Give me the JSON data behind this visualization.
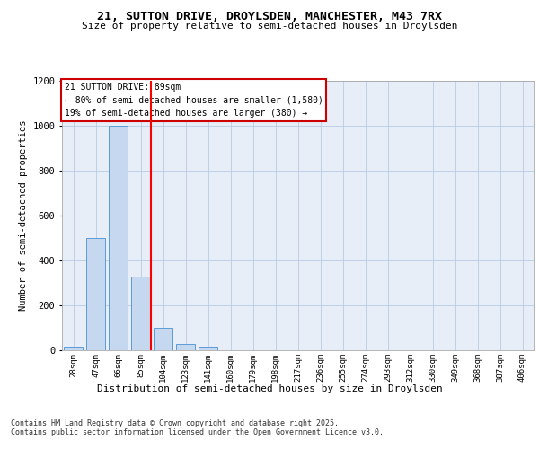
{
  "title1": "21, SUTTON DRIVE, DROYLSDEN, MANCHESTER, M43 7RX",
  "title2": "Size of property relative to semi-detached houses in Droylsden",
  "xlabel": "Distribution of semi-detached houses by size in Droylsden",
  "ylabel": "Number of semi-detached properties",
  "categories": [
    "28sqm",
    "47sqm",
    "66sqm",
    "85sqm",
    "104sqm",
    "123sqm",
    "141sqm",
    "160sqm",
    "179sqm",
    "198sqm",
    "217sqm",
    "236sqm",
    "255sqm",
    "274sqm",
    "293sqm",
    "312sqm",
    "330sqm",
    "349sqm",
    "368sqm",
    "387sqm",
    "406sqm"
  ],
  "values": [
    15,
    500,
    1000,
    330,
    100,
    30,
    15,
    0,
    0,
    0,
    0,
    0,
    0,
    0,
    0,
    0,
    0,
    0,
    0,
    0,
    0
  ],
  "bar_color": "#c5d8f0",
  "bar_edge_color": "#5b9bd5",
  "red_line_x": 3.5,
  "annotation_line1": "21 SUTTON DRIVE: 89sqm",
  "annotation_line2": "← 80% of semi-detached houses are smaller (1,580)",
  "annotation_line3": "19% of semi-detached houses are larger (380) →",
  "annotation_box_color": "#ffffff",
  "annotation_box_edge_color": "#cc0000",
  "ylim": [
    0,
    1200
  ],
  "yticks": [
    0,
    200,
    400,
    600,
    800,
    1000,
    1200
  ],
  "footer1": "Contains HM Land Registry data © Crown copyright and database right 2025.",
  "footer2": "Contains public sector information licensed under the Open Government Licence v3.0.",
  "bg_color": "#ffffff",
  "plot_bg_color": "#e8eef8"
}
